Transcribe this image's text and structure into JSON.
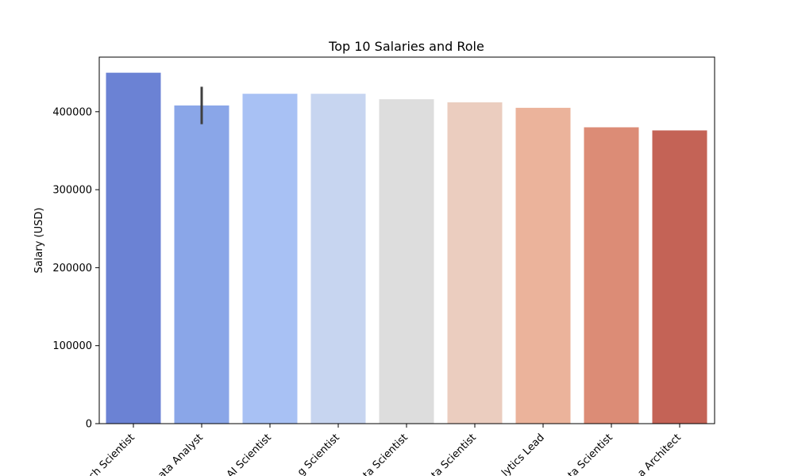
{
  "chart_data": {
    "type": "bar",
    "title": "Top 10 Salaries and Role",
    "xlabel": "",
    "ylabel": "Salary (USD)",
    "ylim": [
      0,
      470000
    ],
    "yticks": [
      0,
      100000,
      200000,
      300000,
      400000
    ],
    "grid": false,
    "categories": [
      "Research Scientist",
      "Data Analyst",
      "AI Scientist",
      "Machine Learning Scientist",
      "Applied Data Scientist",
      "Principal Data Scientist",
      "Data Analytics Lead",
      "Director of Data Scientist",
      "Big Data Architect"
    ],
    "visible_category_labels": [
      "ch Scientist",
      "ata Analyst",
      "AI Scientist",
      "g Scientist",
      "ta Scientist",
      "ta Scientist",
      "lytics Lead",
      "ta Scientist",
      "a Architect"
    ],
    "values": [
      450000,
      408000,
      423000,
      423000,
      416000,
      412000,
      405000,
      380000,
      376000
    ],
    "error_bars": [
      null,
      [
        384000,
        432000
      ],
      null,
      null,
      null,
      null,
      null,
      null,
      null
    ],
    "colors": [
      "#6b82d4",
      "#8aa6e8",
      "#a8c1f4",
      "#c7d5f0",
      "#dddddd",
      "#ebcdbf",
      "#ebb39b",
      "#dc8c76",
      "#c46356"
    ]
  }
}
